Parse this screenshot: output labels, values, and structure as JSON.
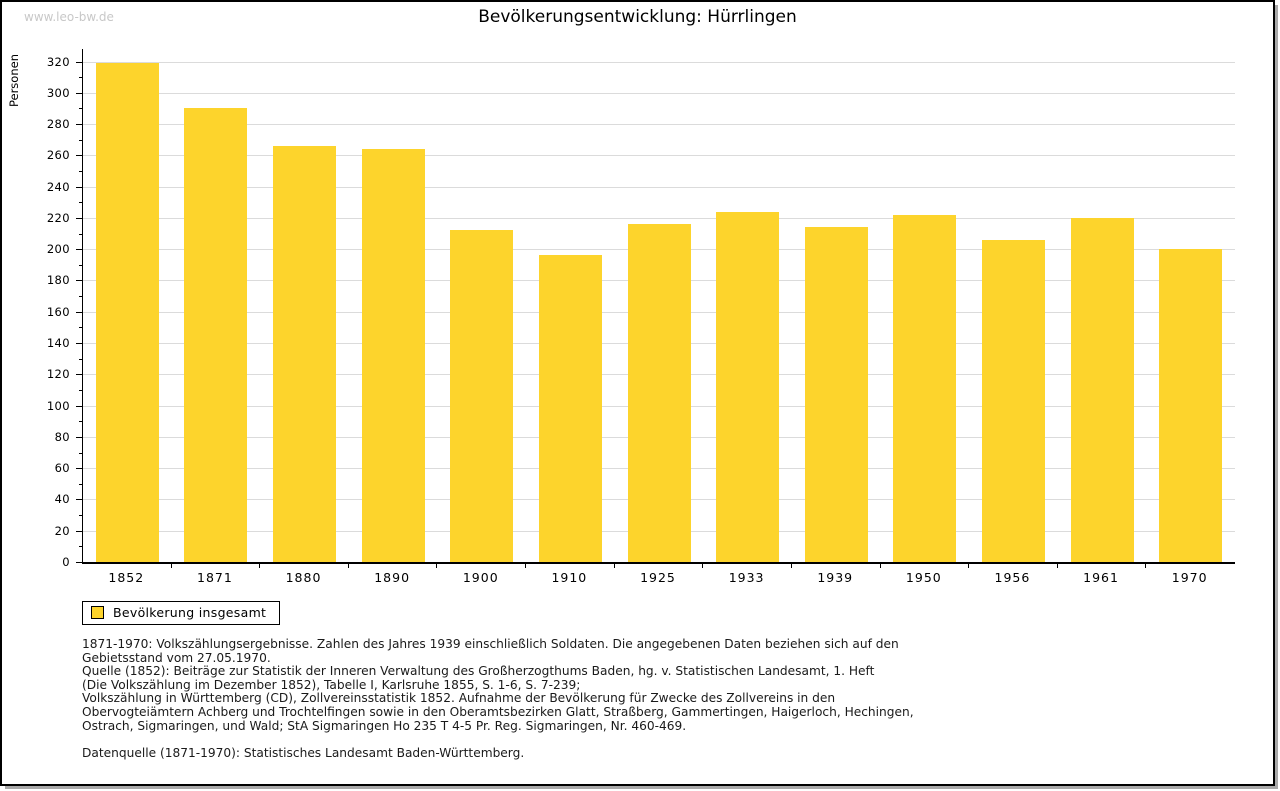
{
  "header": {
    "watermark": "www.leo-bw.de",
    "title": "Bevölkerungsentwicklung: Hürrlingen"
  },
  "chart_data": {
    "type": "bar",
    "title": "Bevölkerungsentwicklung: Hürrlingen",
    "ylabel": "Personen",
    "xlabel": "",
    "categories": [
      "1852",
      "1871",
      "1880",
      "1890",
      "1900",
      "1910",
      "1925",
      "1933",
      "1939",
      "1950",
      "1956",
      "1961",
      "1970"
    ],
    "series": [
      {
        "name": "Bevölkerung insgesamt",
        "values": [
          319,
          290,
          266,
          264,
          212,
          196,
          216,
          224,
          214,
          222,
          206,
          220,
          200
        ]
      }
    ],
    "ylim": [
      0,
      328
    ],
    "ytick_step": 20,
    "ytick_minor_step": 10,
    "ytick_max_label": 320,
    "grid": "horizontal",
    "legend_position": "bottom-left",
    "bar_color": "#fdd42c",
    "grid_color": "#dbdbdb"
  },
  "legend": {
    "label": "Bevölkerung insgesamt",
    "swatch_color": "#fdd42c"
  },
  "notes": {
    "lines": [
      "1871-1970: Volkszählungsergebnisse. Zahlen des Jahres 1939 einschließlich Soldaten. Die angegebenen Daten beziehen sich auf den",
      "Gebietsstand vom 27.05.1970.",
      "Quelle (1852): Beiträge zur Statistik der Inneren Verwaltung des Großherzogthums Baden, hg. v. Statistischen Landesamt, 1. Heft",
      "(Die Volkszählung im Dezember 1852), Tabelle I, Karlsruhe 1855, S. 1-6, S. 7-239;",
      "Volkszählung in Württemberg (CD), Zollvereinsstatistik 1852. Aufnahme der Bevölkerung für Zwecke des Zollvereins in den",
      "Obervogteiämtern Achberg und Trochtelfingen sowie in den Oberamtsbezirken Glatt, Straßberg, Gammertingen, Haigerloch, Hechingen,",
      "Ostrach, Sigmaringen, und Wald; StA Sigmaringen Ho 235 T 4-5 Pr. Reg. Sigmaringen, Nr. 460-469.",
      "",
      "Datenquelle (1871-1970): Statistisches Landesamt Baden-Württemberg."
    ]
  }
}
